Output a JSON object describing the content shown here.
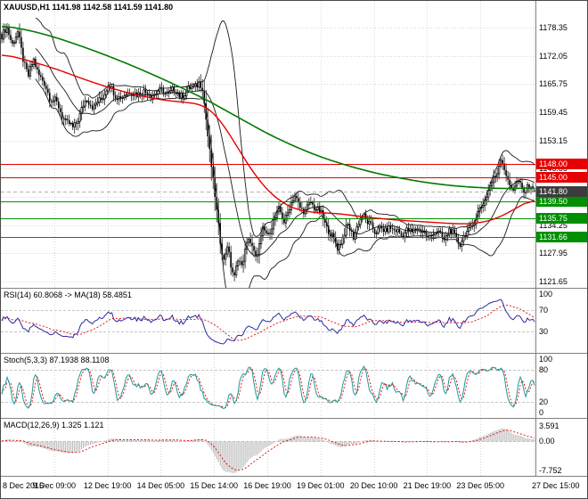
{
  "colors": {
    "background": "#ffffff",
    "grid": "#c8c8c8",
    "guide": "#b4b4b4",
    "candle": "#000000",
    "bull_fill": "#ffffff",
    "bollinger": "#1a1a1a",
    "ma_red": "#e60000",
    "ma_green": "#007a00",
    "rsi_line": "#2b2ba0",
    "rsi_ma": "#e60000",
    "stoch_k": "#1a9a9a",
    "stoch_d": "#e60000",
    "macd_hist": "#a0a0a0",
    "macd_signal": "#e60000",
    "bid_line": "#999999",
    "splitter": "#808080",
    "text": "#000000"
  },
  "chart_data": {
    "type": "candlestick-with-indicators",
    "symbol": "XAUUSD",
    "timeframe": "H1",
    "title": "XAUUSD,H1 1141.98 1142.58 1141.59 1141.80",
    "ohlc_quote": {
      "open": 1141.98,
      "high": 1142.58,
      "low": 1141.59,
      "close": 1141.8
    },
    "price_axis": {
      "labels": [
        "1178.35",
        "1172.05",
        "1165.75",
        "1159.45",
        "1153.15",
        "1146.85",
        "1140.55",
        "1134.25",
        "1127.95",
        "1121.65"
      ],
      "min": 1120.26,
      "max": 1184.32
    },
    "time_axis": [
      "8 Dec 2016",
      "9 Dec 09:00",
      "12 Dec 19:00",
      "14 Dec 05:00",
      "15 Dec 14:00",
      "16 Dec 19:00",
      "19 Dec 01:00",
      "20 Dec 10:00",
      "21 Dec 19:00",
      "23 Dec 05:00",
      "27 Dec 15:00"
    ],
    "levels": [
      {
        "price": 1148.0,
        "label": "1148.00",
        "color": "#e60000"
      },
      {
        "price": 1145.0,
        "label": "1145.00",
        "color": "#e60000"
      },
      {
        "price": 1139.5,
        "label": "1139.50",
        "color": "#008f00"
      },
      {
        "price": 1135.75,
        "label": "1135.75",
        "color": "#008f00"
      },
      {
        "price": 1131.66,
        "label": "1131.66",
        "color": "#008f00"
      }
    ],
    "current_price": {
      "value": 1141.8,
      "label": "1141.80",
      "box_color": "#3c3c3c"
    },
    "bars": 301,
    "close_path": [
      [
        0,
        1176.5
      ],
      [
        3,
        1178
      ],
      [
        6,
        1175
      ],
      [
        9,
        1177
      ],
      [
        12,
        1171.5
      ],
      [
        15,
        1167.5
      ],
      [
        18,
        1171
      ],
      [
        21,
        1168
      ],
      [
        24,
        1165.5
      ],
      [
        27,
        1163
      ],
      [
        30,
        1162
      ],
      [
        33,
        1159.5
      ],
      [
        36,
        1157.5
      ],
      [
        40,
        1155.8
      ],
      [
        44,
        1159
      ],
      [
        48,
        1162.5
      ],
      [
        52,
        1160.5
      ],
      [
        56,
        1162.5
      ],
      [
        60,
        1165.5
      ],
      [
        64,
        1163.5
      ],
      [
        68,
        1162.5
      ],
      [
        72,
        1164.5
      ],
      [
        76,
        1163
      ],
      [
        80,
        1164.5
      ],
      [
        84,
        1163
      ],
      [
        88,
        1164.5
      ],
      [
        92,
        1163.5
      ],
      [
        96,
        1164.5
      ],
      [
        100,
        1163.2
      ],
      [
        104,
        1164
      ],
      [
        108,
        1165.2
      ],
      [
        111,
        1166
      ],
      [
        113,
        1164.5
      ],
      [
        115,
        1158
      ],
      [
        117,
        1151
      ],
      [
        119,
        1144
      ],
      [
        121,
        1137
      ],
      [
        123,
        1131
      ],
      [
        125,
        1126.5
      ],
      [
        127,
        1129.5
      ],
      [
        129,
        1125
      ],
      [
        131,
        1123
      ],
      [
        133,
        1127
      ],
      [
        135,
        1124.5
      ],
      [
        137,
        1128.5
      ],
      [
        139,
        1132
      ],
      [
        141,
        1129
      ],
      [
        143,
        1126.5
      ],
      [
        145,
        1130
      ],
      [
        147,
        1133.5
      ],
      [
        150,
        1131.5
      ],
      [
        153,
        1135.5
      ],
      [
        156,
        1137.5
      ],
      [
        159,
        1135
      ],
      [
        162,
        1138.5
      ],
      [
        165,
        1140.5
      ],
      [
        168,
        1138.5
      ],
      [
        171,
        1137
      ],
      [
        174,
        1139.5
      ],
      [
        177,
        1138
      ],
      [
        180,
        1136.5
      ],
      [
        183,
        1134
      ],
      [
        186,
        1131.5
      ],
      [
        189,
        1129.5
      ],
      [
        192,
        1131.5
      ],
      [
        195,
        1134
      ],
      [
        198,
        1132
      ],
      [
        201,
        1134.5
      ],
      [
        204,
        1136.5
      ],
      [
        207,
        1134.5
      ],
      [
        210,
        1132.5
      ],
      [
        213,
        1134
      ],
      [
        216,
        1132.5
      ],
      [
        219,
        1134
      ],
      [
        222,
        1133
      ],
      [
        225,
        1131.8
      ],
      [
        228,
        1133.5
      ],
      [
        231,
        1132.2
      ],
      [
        234,
        1134
      ],
      [
        237,
        1132.8
      ],
      [
        240,
        1131.2
      ],
      [
        243,
        1133
      ],
      [
        246,
        1132.2
      ],
      [
        249,
        1131.2
      ],
      [
        252,
        1133
      ],
      [
        255,
        1131.8
      ],
      [
        258,
        1130.2
      ],
      [
        261,
        1132
      ],
      [
        264,
        1133.8
      ],
      [
        267,
        1135.8
      ],
      [
        270,
        1138.5
      ],
      [
        273,
        1141
      ],
      [
        276,
        1143.5
      ],
      [
        279,
        1146.5
      ],
      [
        281,
        1149.3
      ],
      [
        283,
        1146.5
      ],
      [
        285,
        1144
      ],
      [
        288,
        1142.5
      ],
      [
        291,
        1143.8
      ],
      [
        294,
        1141.8
      ],
      [
        297,
        1142.8
      ],
      [
        300,
        1141.8
      ]
    ],
    "ma_green": [
      [
        0,
        1178.8
      ],
      [
        15,
        1177.8
      ],
      [
        30,
        1176.2
      ],
      [
        45,
        1174.2
      ],
      [
        60,
        1172
      ],
      [
        75,
        1169.6
      ],
      [
        90,
        1167
      ],
      [
        105,
        1164.2
      ],
      [
        115,
        1162.3
      ],
      [
        125,
        1160.1
      ],
      [
        135,
        1157.9
      ],
      [
        150,
        1154.6
      ],
      [
        165,
        1151.8
      ],
      [
        180,
        1149.4
      ],
      [
        195,
        1147.5
      ],
      [
        210,
        1145.9
      ],
      [
        225,
        1144.7
      ],
      [
        240,
        1143.7
      ],
      [
        255,
        1143
      ],
      [
        270,
        1142.6
      ],
      [
        285,
        1142.4
      ],
      [
        300,
        1142.6
      ]
    ],
    "ma_red": [
      [
        0,
        1172.5
      ],
      [
        15,
        1171
      ],
      [
        30,
        1169.2
      ],
      [
        45,
        1167
      ],
      [
        60,
        1165
      ],
      [
        75,
        1163.4
      ],
      [
        90,
        1162.2
      ],
      [
        105,
        1161.6
      ],
      [
        113,
        1161.2
      ],
      [
        119,
        1159.6
      ],
      [
        125,
        1156.6
      ],
      [
        131,
        1152.8
      ],
      [
        137,
        1148.8
      ],
      [
        143,
        1145.2
      ],
      [
        150,
        1141.8
      ],
      [
        158,
        1139.2
      ],
      [
        166,
        1137.7
      ],
      [
        174,
        1137.1
      ],
      [
        182,
        1137
      ],
      [
        190,
        1136.8
      ],
      [
        198,
        1136.4
      ],
      [
        206,
        1136
      ],
      [
        214,
        1135.7
      ],
      [
        222,
        1135.4
      ],
      [
        230,
        1135.2
      ],
      [
        238,
        1135
      ],
      [
        246,
        1134.8
      ],
      [
        254,
        1134.6
      ],
      [
        262,
        1134.5
      ],
      [
        270,
        1134.8
      ],
      [
        278,
        1135.6
      ],
      [
        286,
        1137.2
      ],
      [
        293,
        1138.8
      ],
      [
        300,
        1140.3
      ]
    ],
    "indicators": {
      "rsi": {
        "title": "RSI(14) 60.8068 -> MA(18) 58.4851",
        "period": 14,
        "ma_period": 18,
        "value": 60.8068,
        "ma_value": 58.4851,
        "scale_labels": [
          "100",
          "70",
          "30"
        ],
        "guides": [
          70,
          30
        ],
        "range": [
          0,
          100
        ]
      },
      "stoch": {
        "title": "Stoch(5,3,3) 87.1938 88.1108",
        "k_period": 5,
        "slowing": 3,
        "d_period": 3,
        "value_k": 87.1938,
        "value_d": 88.1108,
        "scale_labels": [
          "100",
          "80",
          "20",
          "0"
        ],
        "guides": [
          80,
          20
        ],
        "range": [
          0,
          100
        ]
      },
      "macd": {
        "title": "MACD(12,26,9) 1.325 1.121",
        "fast": 12,
        "slow": 26,
        "signal_period": 9,
        "value": 1.325,
        "signal_value": 1.121,
        "scale_labels": [
          "3.591",
          "0.00",
          "-7.752"
        ],
        "max": 3.591,
        "min": -7.752
      }
    }
  }
}
